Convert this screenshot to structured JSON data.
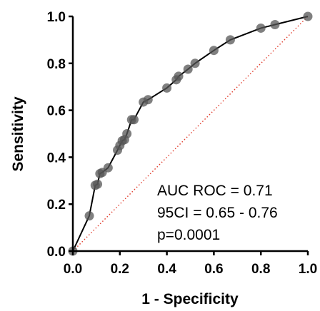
{
  "chart_data": {
    "type": "line",
    "title": "",
    "xlabel": "1 - Specificity",
    "ylabel": "Sensitivity",
    "xlim": [
      0,
      1
    ],
    "ylim": [
      0,
      1
    ],
    "xticks": [
      "0.0",
      "0.2",
      "0.4",
      "0.6",
      "0.8",
      "1.0"
    ],
    "yticks": [
      "0.0",
      "0.2",
      "0.4",
      "0.6",
      "0.8",
      "1.0"
    ],
    "grid": false,
    "legend": "none",
    "series": [
      {
        "type": "line-with-markers",
        "color": "#000000",
        "marker_color": "#555555",
        "x": [
          0.0,
          0.07,
          0.095,
          0.105,
          0.115,
          0.125,
          0.15,
          0.19,
          0.2,
          0.21,
          0.22,
          0.23,
          0.25,
          0.26,
          0.3,
          0.32,
          0.4,
          0.44,
          0.45,
          0.49,
          0.52,
          0.6,
          0.67,
          0.8,
          0.86,
          1.0
        ],
        "y": [
          0.0,
          0.15,
          0.28,
          0.285,
          0.33,
          0.335,
          0.355,
          0.43,
          0.45,
          0.47,
          0.475,
          0.5,
          0.56,
          0.56,
          0.635,
          0.645,
          0.695,
          0.73,
          0.745,
          0.775,
          0.8,
          0.855,
          0.9,
          0.95,
          0.965,
          1.0
        ]
      },
      {
        "type": "reference-diagonal",
        "color": "#e03a2a",
        "x": [
          0,
          1
        ],
        "y": [
          0,
          1
        ]
      }
    ],
    "annotations": [
      "AUC ROC = 0.71",
      "95CI = 0.65 - 0.76",
      "p=0.0001"
    ]
  }
}
